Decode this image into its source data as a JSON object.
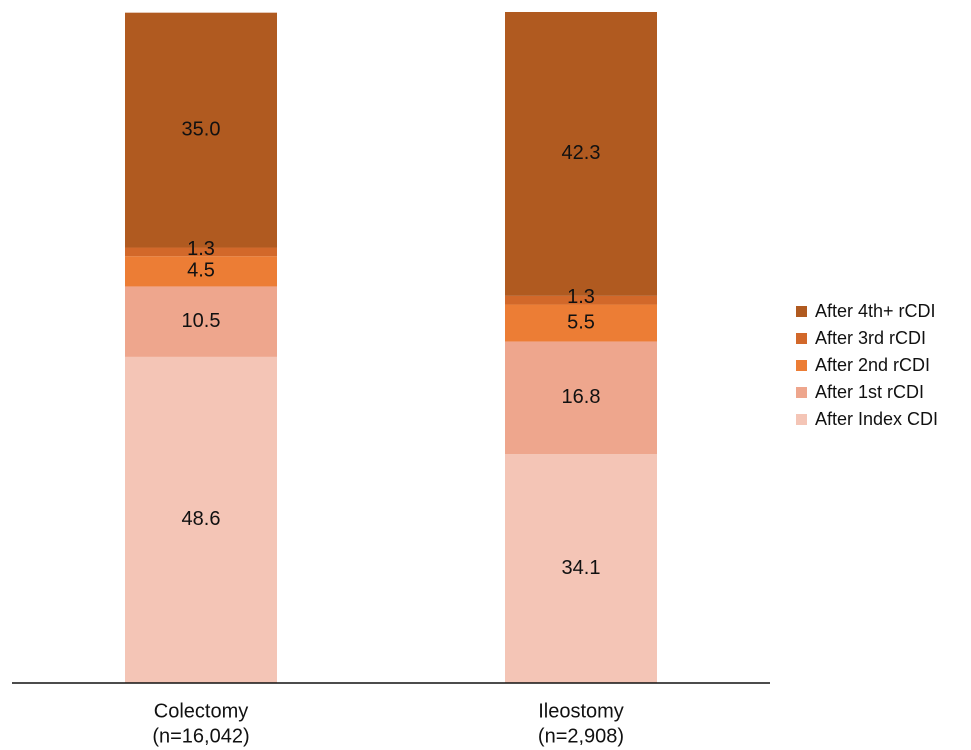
{
  "chart_data": {
    "type": "bar",
    "stacked": true,
    "categories": [
      "Colectomy\n(n=16,042)",
      "Ileostomy\n(n=2,908)"
    ],
    "series": [
      {
        "name": "After Index CDI",
        "color": "#f4c5b6",
        "values": [
          48.6,
          34.1
        ]
      },
      {
        "name": "After 1st rCDI",
        "color": "#eea68d",
        "values": [
          10.5,
          16.8
        ]
      },
      {
        "name": "After 2nd rCDI",
        "color": "#ec7d35",
        "values": [
          4.5,
          5.5
        ]
      },
      {
        "name": "After 3rd rCDI",
        "color": "#d2682a",
        "values": [
          1.3,
          1.3
        ]
      },
      {
        "name": "After 4th+ rCDI",
        "color": "#b05a20",
        "values": [
          35.0,
          42.3
        ]
      }
    ],
    "ylim": [
      0,
      100
    ],
    "legend_position": "right",
    "legend_order": [
      "After 4th+ rCDI",
      "After 3rd rCDI",
      "After 2nd rCDI",
      "After 1st rCDI",
      "After Index CDI"
    ],
    "grid": false
  }
}
